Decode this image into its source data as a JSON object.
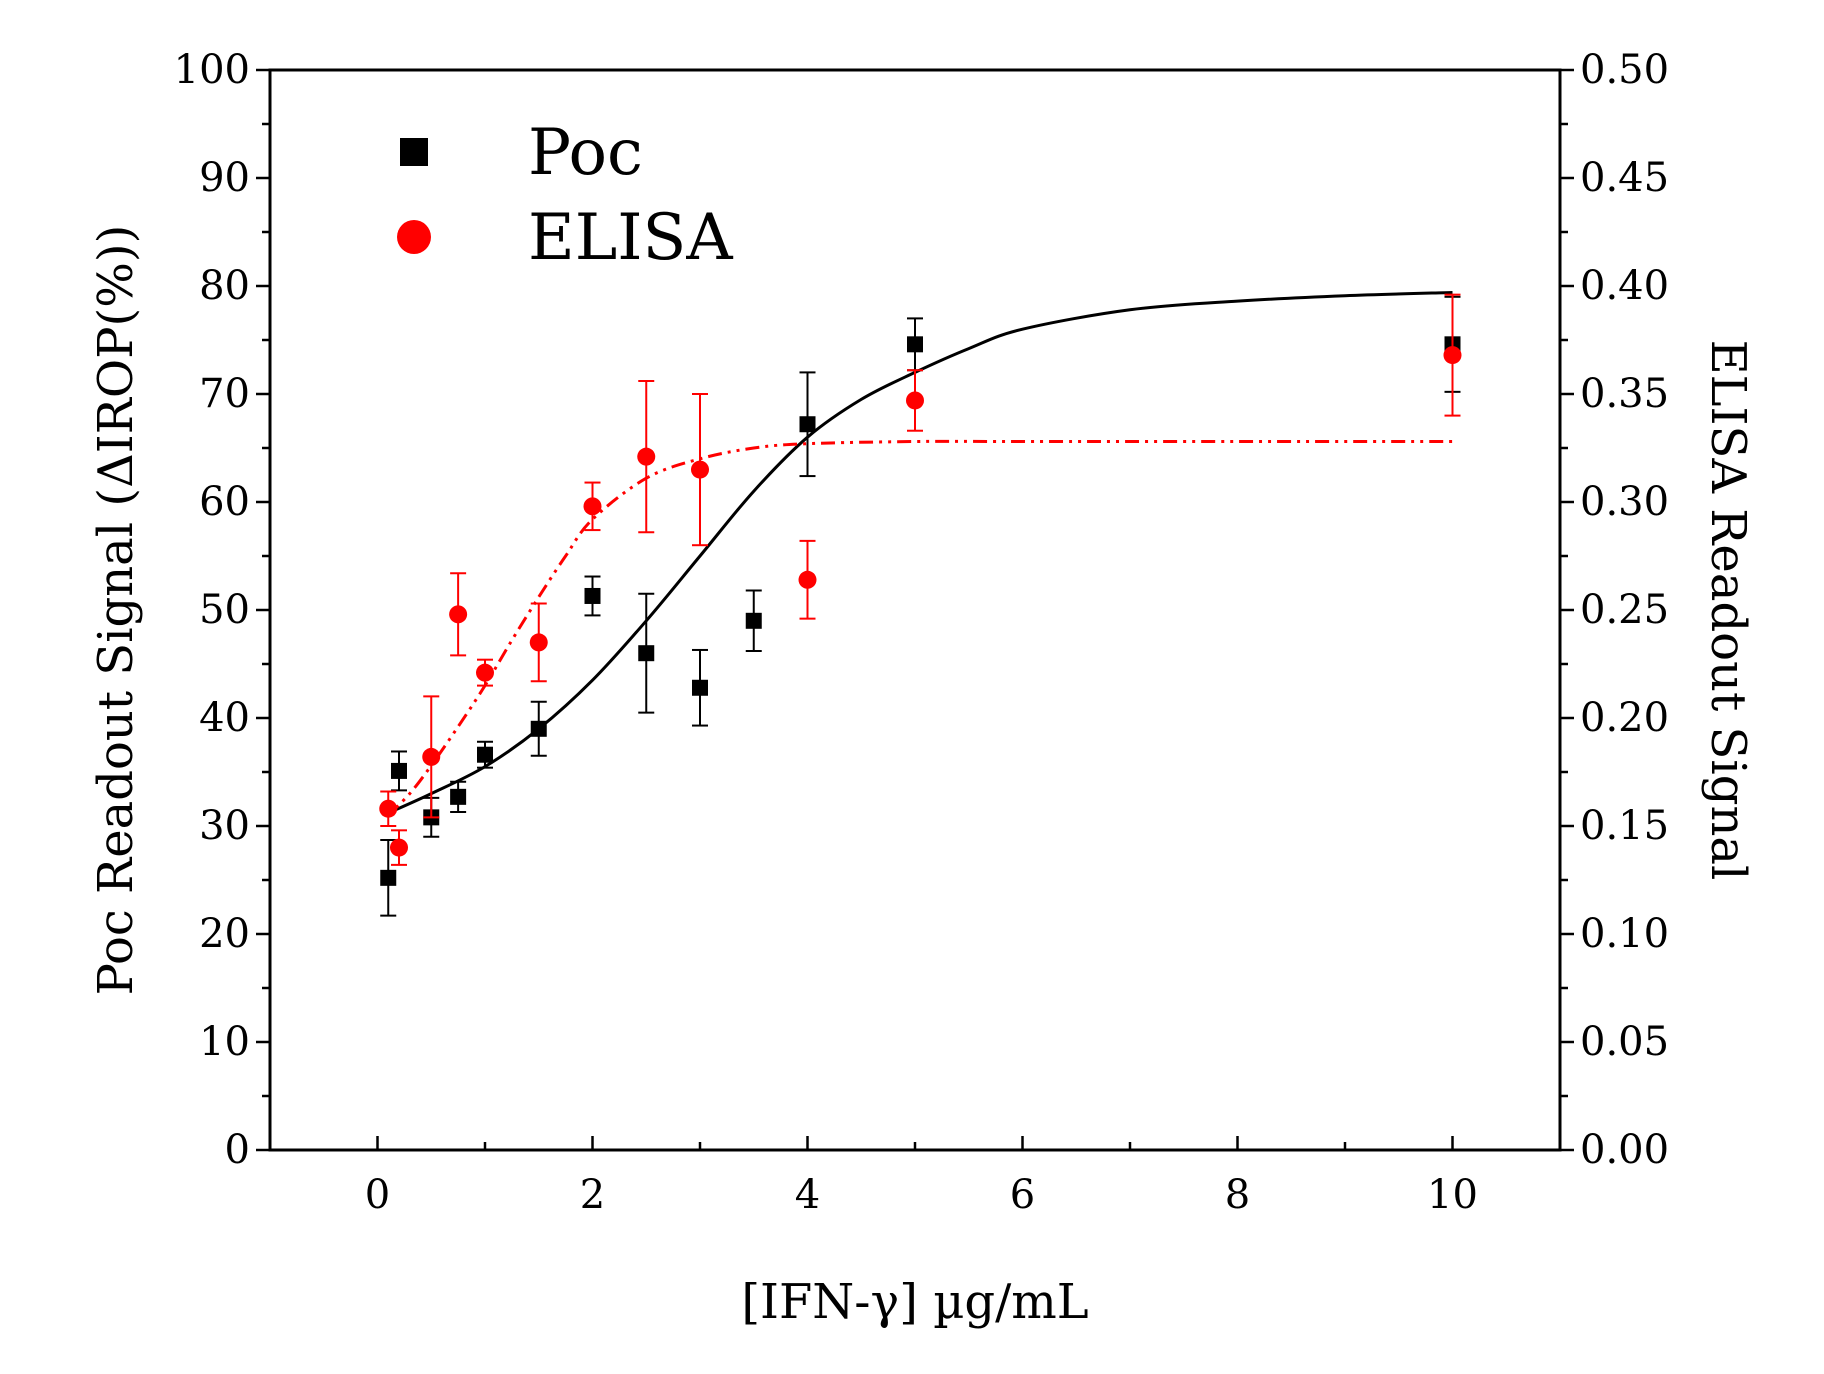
{
  "chart_data": {
    "type": "scatter",
    "title": "",
    "xlabel": "[IFN-γ] µg/mL",
    "ylabel_left": "Poc Readout Signal (ΔIROP(%))",
    "ylabel_right": "ELISA Readout Signal",
    "xlim": [
      -1,
      11
    ],
    "ylim_left": [
      0,
      100
    ],
    "ylim_right": [
      0.0,
      0.5
    ],
    "x_ticks": [
      "0",
      "2",
      "4",
      "6",
      "8",
      "10"
    ],
    "y_left_ticks": [
      "0",
      "10",
      "20",
      "30",
      "40",
      "50",
      "60",
      "70",
      "80",
      "90",
      "100"
    ],
    "y_right_ticks": [
      "0.00",
      "0.05",
      "0.10",
      "0.15",
      "0.20",
      "0.25",
      "0.30",
      "0.35",
      "0.40",
      "0.45",
      "0.50"
    ],
    "grid": false,
    "legend_position": "top-left",
    "series": [
      {
        "name": "Poc",
        "axis": "left",
        "marker": "square",
        "color": "#000000",
        "x": [
          0.1,
          0.2,
          0.5,
          0.75,
          1.0,
          1.5,
          2.0,
          2.5,
          3.0,
          3.5,
          4.0,
          5.0,
          10.0
        ],
        "y": [
          25.2,
          35.1,
          30.8,
          32.7,
          36.6,
          39.0,
          51.3,
          46.0,
          42.8,
          49.0,
          67.2,
          74.6,
          74.6
        ],
        "err": [
          3.5,
          1.8,
          1.8,
          1.4,
          1.2,
          2.5,
          1.8,
          5.5,
          3.5,
          2.8,
          4.8,
          2.4,
          4.4
        ],
        "fit": {
          "style": "solid",
          "x": [
            0.1,
            0.5,
            1.0,
            1.5,
            2.0,
            2.5,
            3.0,
            3.5,
            4.0,
            4.5,
            5.0,
            5.5,
            6.0,
            7.0,
            8.0,
            9.0,
            10.0
          ],
          "y": [
            31.2,
            33.0,
            35.5,
            39.0,
            43.5,
            49.0,
            55.0,
            61.0,
            66.0,
            69.5,
            72.0,
            74.2,
            76.0,
            77.8,
            78.6,
            79.1,
            79.4
          ]
        }
      },
      {
        "name": "ELISA",
        "axis": "right",
        "marker": "circle",
        "color": "#ff0000",
        "x": [
          0.1,
          0.2,
          0.5,
          0.75,
          1.0,
          1.5,
          2.0,
          2.5,
          3.0,
          4.0,
          5.0,
          10.0
        ],
        "y": [
          0.158,
          0.14,
          0.182,
          0.248,
          0.221,
          0.235,
          0.298,
          0.321,
          0.315,
          0.264,
          0.347,
          0.368
        ],
        "err": [
          0.008,
          0.008,
          0.028,
          0.019,
          0.006,
          0.018,
          0.011,
          0.035,
          0.035,
          0.018,
          0.014,
          0.028
        ],
        "fit": {
          "style": "dash-dot-dot",
          "x": [
            0.1,
            0.3,
            0.5,
            0.75,
            1.0,
            1.25,
            1.5,
            1.75,
            2.0,
            2.5,
            3.0,
            3.5,
            4.0,
            5.0,
            6.0,
            8.0,
            10.0
          ],
          "y": [
            0.155,
            0.165,
            0.178,
            0.196,
            0.215,
            0.236,
            0.256,
            0.275,
            0.292,
            0.311,
            0.32,
            0.325,
            0.327,
            0.328,
            0.328,
            0.328,
            0.328
          ]
        }
      }
    ]
  }
}
